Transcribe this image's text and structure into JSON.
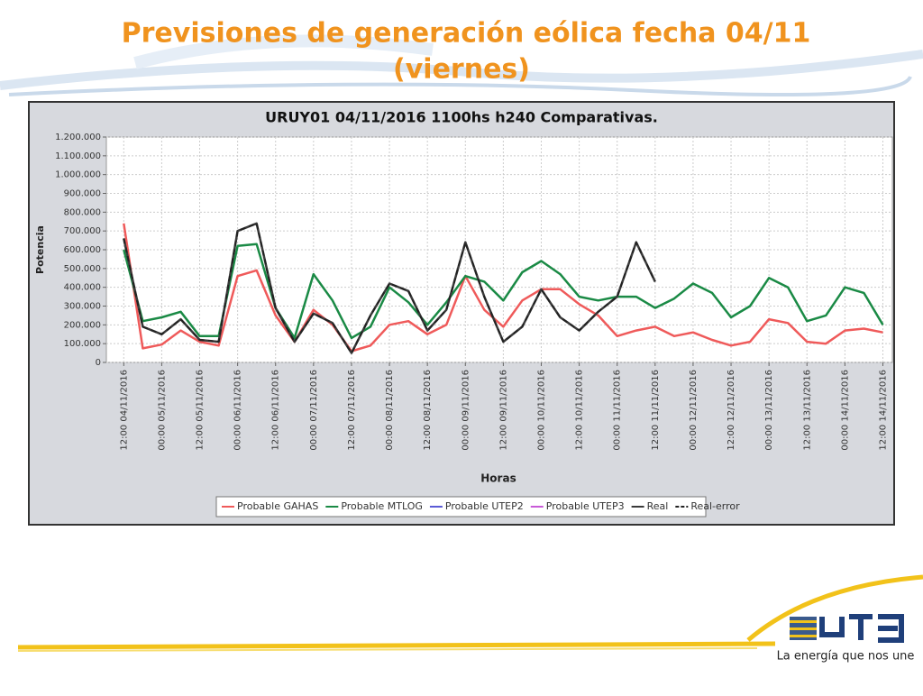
{
  "slide": {
    "title_lines": [
      "Previsiones de generación eólica fecha 04/11",
      "(viernes)"
    ]
  },
  "chart_data": {
    "type": "line",
    "title": "URUY01  04/11/2016  1100hs   h240  Comparativas.",
    "y_label": "Potencia",
    "x_label": "Horas",
    "xlim": [
      -5.5,
      243
    ],
    "ylim": [
      0,
      1200000
    ],
    "grid": true,
    "xticks": [
      {
        "value": 0,
        "label": "12:00 04/11/2016"
      },
      {
        "value": 12,
        "label": "00:00 05/11/2016"
      },
      {
        "value": 24,
        "label": "12:00 05/11/2016"
      },
      {
        "value": 36,
        "label": "00:00 06/11/2016"
      },
      {
        "value": 48,
        "label": "12:00 06/11/2016"
      },
      {
        "value": 60,
        "label": "00:00 07/11/2016"
      },
      {
        "value": 72,
        "label": "12:00 07/11/2016"
      },
      {
        "value": 84,
        "label": "00:00 08/11/2016"
      },
      {
        "value": 96,
        "label": "12:00 08/11/2016"
      },
      {
        "value": 108,
        "label": "00:00 09/11/2016"
      },
      {
        "value": 120,
        "label": "12:00 09/11/2016"
      },
      {
        "value": 132,
        "label": "00:00 10/11/2016"
      },
      {
        "value": 144,
        "label": "12:00 10/11/2016"
      },
      {
        "value": 156,
        "label": "00:00 11/11/2016"
      },
      {
        "value": 168,
        "label": "12:00 11/11/2016"
      },
      {
        "value": 180,
        "label": "00:00 12/11/2016"
      },
      {
        "value": 192,
        "label": "12:00 12/11/2016"
      },
      {
        "value": 204,
        "label": "00:00 13/11/2016"
      },
      {
        "value": 216,
        "label": "12:00 13/11/2016"
      },
      {
        "value": 228,
        "label": "00:00 14/11/2016"
      },
      {
        "value": 240,
        "label": "12:00 14/11/2016"
      }
    ],
    "yticks": [
      {
        "value": 0,
        "label": "0"
      },
      {
        "value": 100000,
        "label": "100.000"
      },
      {
        "value": 200000,
        "label": "200.000"
      },
      {
        "value": 300000,
        "label": "300.000"
      },
      {
        "value": 400000,
        "label": "400.000"
      },
      {
        "value": 500000,
        "label": "500.000"
      },
      {
        "value": 600000,
        "label": "600.000"
      },
      {
        "value": 700000,
        "label": "700.000"
      },
      {
        "value": 800000,
        "label": "800.000"
      },
      {
        "value": 900000,
        "label": "900.000"
      },
      {
        "value": 1000000,
        "label": "1.000.000"
      },
      {
        "value": 1100000,
        "label": "1.100.000"
      },
      {
        "value": 1200000,
        "label": "1.200.000"
      }
    ],
    "x": [
      0,
      6,
      12,
      18,
      24,
      30,
      36,
      42,
      48,
      54,
      60,
      66,
      72,
      78,
      84,
      90,
      96,
      102,
      108,
      114,
      120,
      126,
      132,
      138,
      144,
      150,
      156,
      162,
      168,
      174,
      180,
      186,
      192,
      198,
      204,
      210,
      216,
      222,
      228,
      234,
      240
    ],
    "series": [
      {
        "name": "Probable GAHAS",
        "color": "#ef5a5a",
        "dash": false,
        "values": [
          740000,
          75000,
          95000,
          170000,
          110000,
          90000,
          460000,
          490000,
          250000,
          110000,
          280000,
          200000,
          60000,
          90000,
          200000,
          220000,
          150000,
          200000,
          460000,
          280000,
          190000,
          330000,
          390000,
          390000,
          310000,
          250000,
          140000,
          170000,
          190000,
          140000,
          160000,
          120000,
          90000,
          110000,
          230000,
          210000,
          110000,
          100000,
          170000,
          180000,
          160000
        ]
      },
      {
        "name": "Probable MTLOG",
        "color": "#1a8a45",
        "dash": false,
        "values": [
          600000,
          220000,
          240000,
          270000,
          140000,
          140000,
          620000,
          630000,
          290000,
          130000,
          470000,
          330000,
          130000,
          190000,
          400000,
          320000,
          200000,
          320000,
          460000,
          430000,
          330000,
          480000,
          540000,
          470000,
          350000,
          330000,
          350000,
          350000,
          290000,
          340000,
          420000,
          370000,
          240000,
          300000,
          450000,
          400000,
          220000,
          250000,
          400000,
          370000,
          200000
        ]
      },
      {
        "name": "Probable UTEP2",
        "color": "#5b5bd6",
        "dash": false,
        "values": [
          null,
          null,
          null,
          null,
          null,
          null,
          null,
          null,
          null,
          null,
          null,
          null,
          null,
          null,
          null,
          null,
          null,
          null,
          null,
          null,
          null,
          null,
          null,
          null,
          null,
          null,
          null,
          null,
          null,
          null,
          null,
          null,
          null,
          null,
          null,
          null,
          null,
          null,
          null,
          null,
          null
        ]
      },
      {
        "name": "Probable UTEP3",
        "color": "#c85ad8",
        "dash": false,
        "values": [
          null,
          null,
          null,
          null,
          null,
          null,
          null,
          null,
          null,
          null,
          null,
          null,
          null,
          null,
          null,
          null,
          null,
          null,
          null,
          null,
          null,
          null,
          null,
          null,
          null,
          null,
          null,
          null,
          null,
          null,
          null,
          null,
          null,
          null,
          null,
          null,
          null,
          null,
          null,
          null,
          null
        ]
      },
      {
        "name": "Real",
        "color": "#3a3a3a",
        "dash": false,
        "values": [
          660000,
          190000,
          150000,
          230000,
          120000,
          110000,
          700000,
          740000,
          290000,
          110000,
          260000,
          210000,
          50000,
          250000,
          420000,
          380000,
          170000,
          280000,
          640000,
          350000,
          110000,
          190000,
          390000,
          240000,
          170000,
          270000,
          350000,
          640000,
          430000,
          null,
          null,
          null,
          null,
          null,
          null,
          null,
          null,
          null,
          null,
          null,
          null
        ]
      },
      {
        "name": "Real-error",
        "color": "#222222",
        "dash": true,
        "values": [
          660000,
          190000,
          150000,
          230000,
          120000,
          110000,
          700000,
          740000,
          290000,
          110000,
          260000,
          210000,
          50000,
          250000,
          420000,
          380000,
          170000,
          280000,
          640000,
          350000,
          110000,
          190000,
          390000,
          240000,
          170000,
          270000,
          350000,
          640000,
          430000,
          null,
          null,
          null,
          null,
          null,
          null,
          null,
          null,
          null,
          null,
          null,
          null
        ]
      }
    ]
  },
  "footer": {
    "tagline": "La energía que nos une"
  }
}
